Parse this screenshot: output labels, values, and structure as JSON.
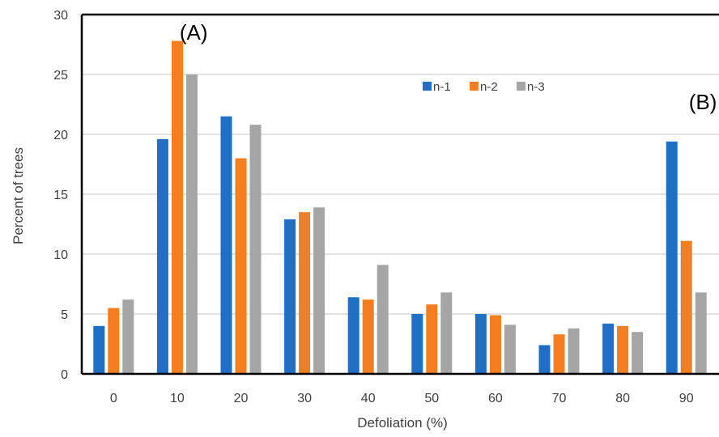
{
  "chart_data": {
    "type": "bar",
    "xlabel": "Defoliation (%)",
    "ylabel": "Percent of trees",
    "categories": [
      "0",
      "10",
      "20",
      "30",
      "40",
      "50",
      "60",
      "70",
      "80",
      "90"
    ],
    "series": [
      {
        "name": "n-1",
        "color": "#1F6FC5",
        "values": [
          4.0,
          19.6,
          21.5,
          12.9,
          6.4,
          5.0,
          5.0,
          2.4,
          4.2,
          19.4
        ]
      },
      {
        "name": "n-2",
        "color": "#F47E20",
        "values": [
          5.5,
          27.8,
          18.0,
          13.5,
          6.2,
          5.8,
          4.9,
          3.3,
          4.0,
          11.1
        ]
      },
      {
        "name": "n-3",
        "color": "#A5A5A5",
        "values": [
          6.2,
          25.0,
          20.8,
          13.9,
          9.1,
          6.8,
          4.1,
          3.8,
          3.5,
          6.8
        ]
      }
    ],
    "ylim": [
      0,
      30
    ],
    "yticks": [
      0,
      5,
      10,
      15,
      20,
      25,
      30
    ],
    "grid": true,
    "legend_position": "top-center",
    "annotations": [
      {
        "text": "(A)",
        "category": "10",
        "y": 27.9
      },
      {
        "text": "(B)",
        "category": "90",
        "y": 22.1
      }
    ]
  }
}
